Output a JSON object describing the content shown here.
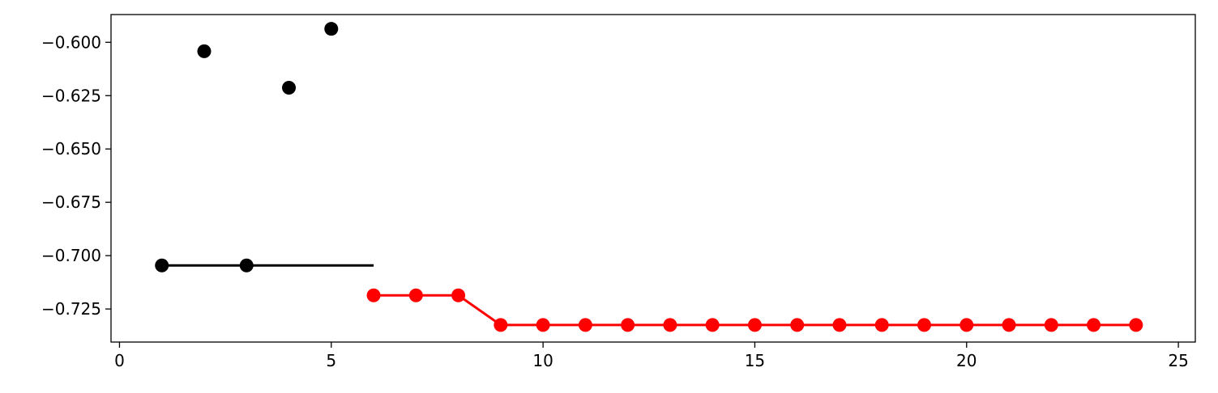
{
  "chart_data": {
    "type": "line",
    "title": "",
    "xlabel": "",
    "ylabel": "",
    "xlim": [
      -0.2,
      25.4
    ],
    "ylim": [
      -0.7405,
      -0.587
    ],
    "xticks": [
      0,
      5,
      10,
      15,
      20,
      25
    ],
    "xtick_labels": [
      "0",
      "5",
      "10",
      "15",
      "20",
      "25"
    ],
    "yticks": [
      -0.6,
      -0.625,
      -0.65,
      -0.675,
      -0.7,
      -0.725
    ],
    "ytick_labels": [
      "−0.600",
      "−0.625",
      "−0.650",
      "−0.675",
      "−0.700",
      "−0.725"
    ],
    "grid": false,
    "series": [
      {
        "name": "initial-points",
        "color": "#000000",
        "mode": "markers",
        "x": [
          1,
          2,
          3,
          4,
          5
        ],
        "y": [
          -0.7046,
          -0.6042,
          -0.7046,
          -0.6213,
          -0.5937
        ]
      },
      {
        "name": "initial-best",
        "color": "#000000",
        "mode": "line",
        "x": [
          1,
          6
        ],
        "y": [
          -0.7046,
          -0.7046
        ]
      },
      {
        "name": "optimized",
        "color": "#ff0000",
        "mode": "lines+markers",
        "x": [
          6,
          7,
          8,
          9,
          10,
          11,
          12,
          13,
          14,
          15,
          16,
          17,
          18,
          19,
          20,
          21,
          22,
          23,
          24
        ],
        "y": [
          -0.7186,
          -0.7186,
          -0.7186,
          -0.7325,
          -0.7325,
          -0.7325,
          -0.7325,
          -0.7325,
          -0.7325,
          -0.7325,
          -0.7325,
          -0.7325,
          -0.7325,
          -0.7325,
          -0.7325,
          -0.7325,
          -0.7325,
          -0.7325,
          -0.7325
        ]
      }
    ]
  }
}
